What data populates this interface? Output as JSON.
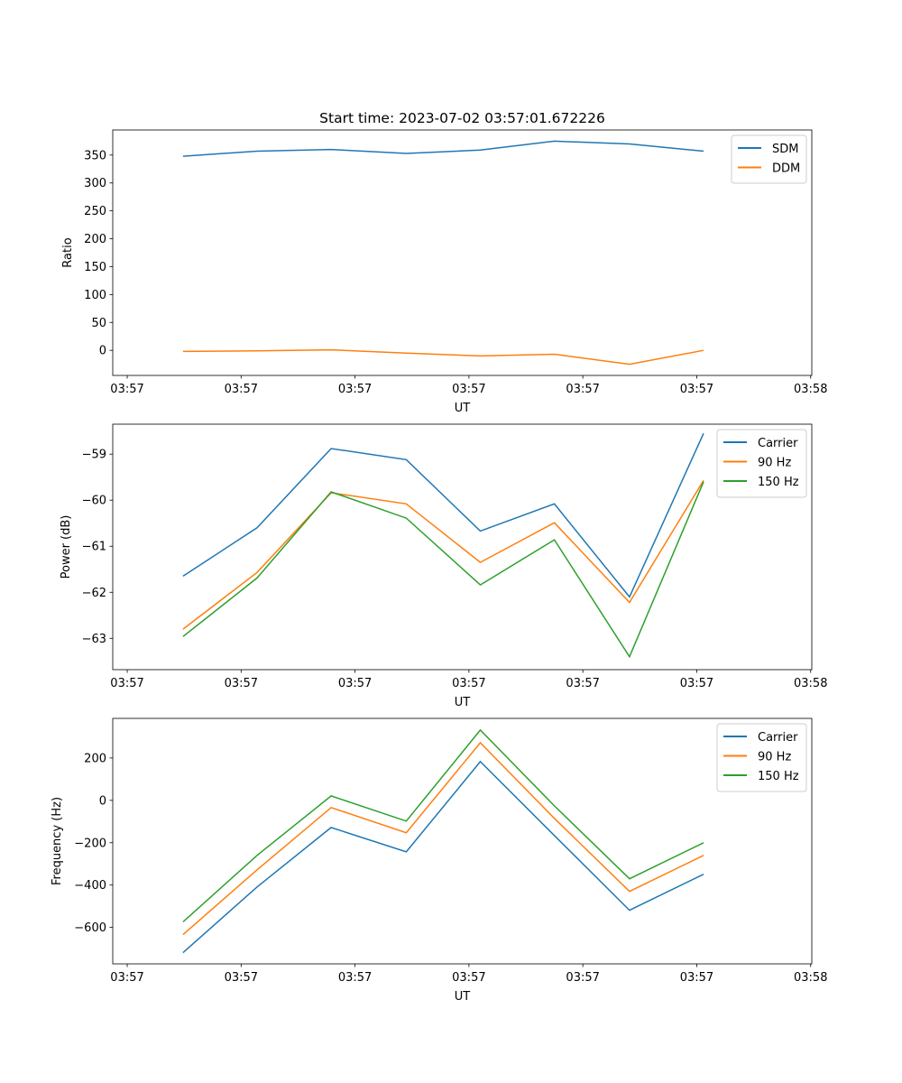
{
  "chart_data": [
    {
      "type": "line",
      "title": "Start time: 2023-07-02 03:57:01.672226",
      "xlabel": "UT",
      "ylabel": "Ratio",
      "xticks": [
        0,
        1,
        2,
        3,
        4,
        5,
        6
      ],
      "xtick_labels": [
        "03:57",
        "03:57",
        "03:57",
        "03:57",
        "03:57",
        "03:57",
        "03:58"
      ],
      "xlim": [
        -0.127,
        6.01
      ],
      "yticks": [
        0,
        50,
        100,
        150,
        200,
        250,
        300,
        350
      ],
      "ylim": [
        -45,
        395
      ],
      "x": [
        0.49,
        1.14,
        1.79,
        2.45,
        3.1,
        3.75,
        4.41,
        5.06
      ],
      "legend": "top-right",
      "series": [
        {
          "name": "SDM",
          "color": "#1f77b4",
          "values": [
            348,
            357,
            360,
            353,
            359,
            375,
            370,
            357
          ]
        },
        {
          "name": "DDM",
          "color": "#ff7f0e",
          "values": [
            -2,
            -1,
            1,
            -5,
            -10,
            -7,
            -25,
            0
          ]
        }
      ]
    },
    {
      "type": "line",
      "title": "",
      "xlabel": "UT",
      "ylabel": "Power (dB)",
      "xticks": [
        0,
        1,
        2,
        3,
        4,
        5,
        6
      ],
      "xtick_labels": [
        "03:57",
        "03:57",
        "03:57",
        "03:57",
        "03:57",
        "03:57",
        "03:58"
      ],
      "xlim": [
        -0.127,
        6.01
      ],
      "yticks": [
        -63,
        -62,
        -61,
        -60,
        -59
      ],
      "ytick_labels": [
        "−63",
        "−62",
        "−61",
        "−60",
        "−59"
      ],
      "ylim": [
        -63.68,
        -58.35
      ],
      "x": [
        0.49,
        1.14,
        1.79,
        2.45,
        3.1,
        3.75,
        4.41,
        5.06
      ],
      "legend": "top-right",
      "series": [
        {
          "name": "Carrier",
          "color": "#1f77b4",
          "values": [
            -61.65,
            -60.6,
            -58.88,
            -59.12,
            -60.67,
            -60.08,
            -62.1,
            -58.55
          ]
        },
        {
          "name": "90 Hz",
          "color": "#ff7f0e",
          "values": [
            -62.8,
            -61.57,
            -59.84,
            -60.08,
            -61.35,
            -60.49,
            -62.22,
            -59.57
          ]
        },
        {
          "name": "150 Hz",
          "color": "#2ca02c",
          "values": [
            -62.96,
            -61.69,
            -59.82,
            -60.39,
            -61.84,
            -60.86,
            -63.4,
            -59.6
          ]
        }
      ]
    },
    {
      "type": "line",
      "title": "",
      "xlabel": "UT",
      "ylabel": "Frequency (Hz)",
      "xticks": [
        0,
        1,
        2,
        3,
        4,
        5,
        6
      ],
      "xtick_labels": [
        "03:57",
        "03:57",
        "03:57",
        "03:57",
        "03:57",
        "03:57",
        "03:58"
      ],
      "xlim": [
        -0.127,
        6.01
      ],
      "yticks": [
        -600,
        -400,
        -200,
        0,
        200
      ],
      "ytick_labels": [
        "−600",
        "−400",
        "−200",
        "0",
        "200"
      ],
      "ylim": [
        -772,
        387
      ],
      "x": [
        0.49,
        1.14,
        1.79,
        2.45,
        3.1,
        3.75,
        4.41,
        5.06
      ],
      "legend": "top-right",
      "series": [
        {
          "name": "Carrier",
          "color": "#1f77b4",
          "values": [
            -719,
            -409,
            -128,
            -243,
            183,
            -166,
            -519,
            -349
          ]
        },
        {
          "name": "90 Hz",
          "color": "#ff7f0e",
          "values": [
            -634,
            -328,
            -34,
            -153,
            272,
            -85,
            -430,
            -260
          ]
        },
        {
          "name": "150 Hz",
          "color": "#2ca02c",
          "values": [
            -574,
            -260,
            21,
            -98,
            332,
            -26,
            -370,
            -200
          ]
        }
      ]
    }
  ]
}
